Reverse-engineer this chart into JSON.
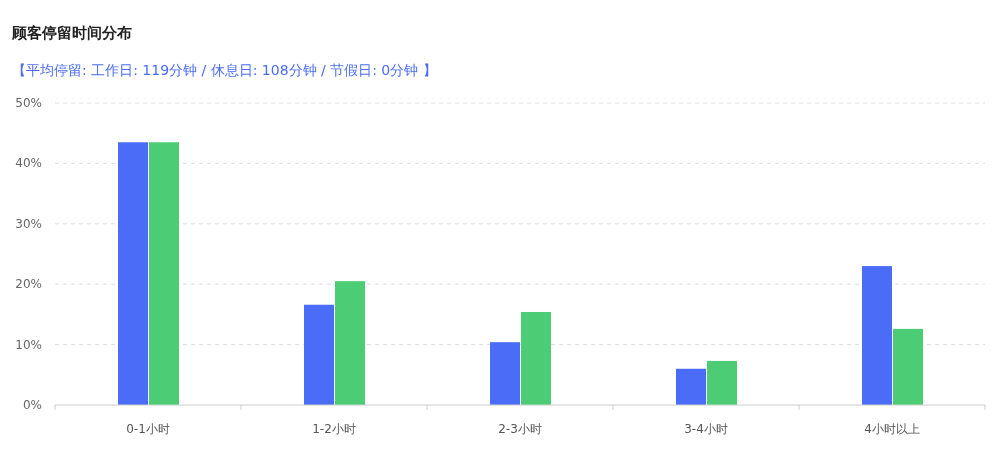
{
  "chart_data": {
    "type": "bar",
    "title": "顾客停留时间分布",
    "subtitle": "【平均停留: 工作日: 119分钟 / 休息日: 108分钟 / 节假日: 0分钟 】",
    "categories": [
      "0-1小时",
      "1-2小时",
      "2-3小时",
      "3-4小时",
      "4小时以上"
    ],
    "series": [
      {
        "color": "#4a6cf7",
        "values": [
          43.5,
          16.6,
          10.4,
          6.0,
          23.0
        ]
      },
      {
        "color": "#4ccc74",
        "values": [
          43.5,
          20.5,
          15.4,
          7.3,
          12.6
        ]
      }
    ],
    "ylim": [
      0,
      50
    ],
    "yticks": [
      {
        "value": 0,
        "label": "0%"
      },
      {
        "value": 10,
        "label": "10%"
      },
      {
        "value": 20,
        "label": "20%"
      },
      {
        "value": 30,
        "label": "30%"
      },
      {
        "value": 40,
        "label": "40%"
      },
      {
        "value": 50,
        "label": "50%"
      }
    ],
    "grid": "y"
  }
}
